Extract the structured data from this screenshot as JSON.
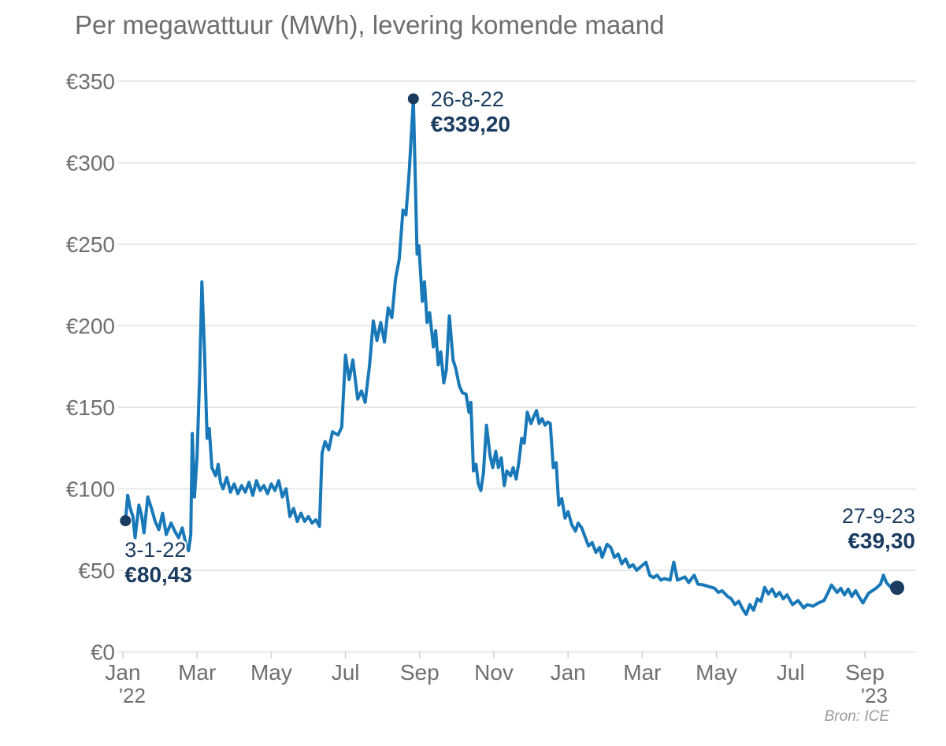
{
  "title": "Per megawattuur (MWh), levering komende maand",
  "source": "Bron: ICE",
  "colors": {
    "line": "#1878b8",
    "marker": "#1b3c60",
    "annotation_text": "#1b3c60",
    "title_text": "#6d6d6d",
    "axis_text": "#6f6f6f",
    "gridline": "#e8e8e8",
    "tick_mark": "#cfcfcf",
    "background": "#ffffff"
  },
  "chart_data": {
    "type": "line",
    "title": "Per megawattuur (MWh), levering komende maand",
    "currency": "EUR",
    "ylim": [
      0,
      350
    ],
    "grid": "horizontal",
    "y_ticks": [
      {
        "v": 0,
        "label": "€0"
      },
      {
        "v": 50,
        "label": "€50"
      },
      {
        "v": 100,
        "label": "€100"
      },
      {
        "v": 150,
        "label": "€150"
      },
      {
        "v": 200,
        "label": "€200"
      },
      {
        "v": 250,
        "label": "€250"
      },
      {
        "v": 300,
        "label": "€300"
      },
      {
        "v": 350,
        "label": "€350"
      }
    ],
    "x_ticks": [
      {
        "t": 0,
        "label": "Jan",
        "year": "'22"
      },
      {
        "t": 2,
        "label": "Mar"
      },
      {
        "t": 4,
        "label": "May"
      },
      {
        "t": 6,
        "label": "Jul"
      },
      {
        "t": 8,
        "label": "Sep"
      },
      {
        "t": 10,
        "label": "Nov"
      },
      {
        "t": 12,
        "label": "Jan"
      },
      {
        "t": 14,
        "label": "Mar"
      },
      {
        "t": 16,
        "label": "May"
      },
      {
        "t": 18,
        "label": "Jul"
      },
      {
        "t": 20,
        "label": "Sep",
        "year": "'23"
      }
    ],
    "annotations": [
      {
        "t": 0.07,
        "value": 80.43,
        "date": "3-1-22",
        "price": "€80,43",
        "dot_r": 7,
        "placement": "below-right"
      },
      {
        "t": 7.83,
        "value": 339.2,
        "date": "26-8-22",
        "price": "€339,20",
        "dot_r": 7,
        "placement": "right-of-peak"
      },
      {
        "t": 20.87,
        "value": 39.3,
        "date": "27-9-23",
        "price": "€39,30",
        "dot_r": 9,
        "placement": "above-right-aligned"
      }
    ],
    "points": [
      [
        0.07,
        80.43
      ],
      [
        0.13,
        96
      ],
      [
        0.2,
        88
      ],
      [
        0.27,
        83
      ],
      [
        0.33,
        70
      ],
      [
        0.43,
        90
      ],
      [
        0.5,
        84
      ],
      [
        0.57,
        73
      ],
      [
        0.67,
        95
      ],
      [
        0.77,
        88
      ],
      [
        0.87,
        80
      ],
      [
        0.97,
        75
      ],
      [
        1.07,
        85
      ],
      [
        1.17,
        72
      ],
      [
        1.3,
        79
      ],
      [
        1.4,
        74
      ],
      [
        1.5,
        70
      ],
      [
        1.6,
        76
      ],
      [
        1.7,
        66
      ],
      [
        1.77,
        62
      ],
      [
        1.83,
        72
      ],
      [
        1.87,
        134
      ],
      [
        1.93,
        95
      ],
      [
        2.0,
        120
      ],
      [
        2.07,
        170
      ],
      [
        2.13,
        227
      ],
      [
        2.2,
        185
      ],
      [
        2.27,
        131
      ],
      [
        2.33,
        137
      ],
      [
        2.4,
        113
      ],
      [
        2.5,
        108
      ],
      [
        2.57,
        115
      ],
      [
        2.63,
        104
      ],
      [
        2.7,
        100
      ],
      [
        2.8,
        107
      ],
      [
        2.9,
        98
      ],
      [
        3.0,
        103
      ],
      [
        3.1,
        97
      ],
      [
        3.2,
        102
      ],
      [
        3.3,
        98
      ],
      [
        3.4,
        104
      ],
      [
        3.5,
        96
      ],
      [
        3.6,
        105
      ],
      [
        3.7,
        99
      ],
      [
        3.8,
        102
      ],
      [
        3.9,
        97
      ],
      [
        4.0,
        103
      ],
      [
        4.1,
        99
      ],
      [
        4.2,
        105
      ],
      [
        4.3,
        95
      ],
      [
        4.4,
        100
      ],
      [
        4.5,
        83
      ],
      [
        4.6,
        88
      ],
      [
        4.7,
        80
      ],
      [
        4.8,
        85
      ],
      [
        4.9,
        80
      ],
      [
        5.0,
        83
      ],
      [
        5.1,
        79
      ],
      [
        5.2,
        81
      ],
      [
        5.3,
        77
      ],
      [
        5.37,
        122
      ],
      [
        5.45,
        129
      ],
      [
        5.55,
        124
      ],
      [
        5.65,
        135
      ],
      [
        5.8,
        133
      ],
      [
        5.9,
        138
      ],
      [
        6.0,
        182
      ],
      [
        6.1,
        167
      ],
      [
        6.2,
        179
      ],
      [
        6.33,
        155
      ],
      [
        6.43,
        160
      ],
      [
        6.53,
        153
      ],
      [
        6.65,
        176
      ],
      [
        6.75,
        203
      ],
      [
        6.85,
        191
      ],
      [
        6.95,
        202
      ],
      [
        7.05,
        190
      ],
      [
        7.15,
        211
      ],
      [
        7.25,
        205
      ],
      [
        7.35,
        229
      ],
      [
        7.45,
        241
      ],
      [
        7.55,
        271
      ],
      [
        7.63,
        268
      ],
      [
        7.72,
        295
      ],
      [
        7.83,
        339.2
      ],
      [
        7.93,
        244
      ],
      [
        7.98,
        249
      ],
      [
        8.07,
        215
      ],
      [
        8.13,
        227
      ],
      [
        8.2,
        202
      ],
      [
        8.27,
        208
      ],
      [
        8.37,
        187
      ],
      [
        8.43,
        197
      ],
      [
        8.5,
        176
      ],
      [
        8.57,
        184
      ],
      [
        8.65,
        165
      ],
      [
        8.72,
        173
      ],
      [
        8.8,
        206
      ],
      [
        8.9,
        179
      ],
      [
        8.97,
        174
      ],
      [
        9.07,
        163
      ],
      [
        9.15,
        159
      ],
      [
        9.25,
        158
      ],
      [
        9.33,
        147
      ],
      [
        9.38,
        153
      ],
      [
        9.45,
        111
      ],
      [
        9.52,
        115
      ],
      [
        9.58,
        103
      ],
      [
        9.65,
        99
      ],
      [
        9.72,
        110
      ],
      [
        9.8,
        139
      ],
      [
        9.9,
        120
      ],
      [
        9.97,
        113
      ],
      [
        10.05,
        123
      ],
      [
        10.12,
        113
      ],
      [
        10.2,
        119
      ],
      [
        10.28,
        102
      ],
      [
        10.35,
        111
      ],
      [
        10.45,
        108
      ],
      [
        10.52,
        113
      ],
      [
        10.6,
        106
      ],
      [
        10.67,
        116
      ],
      [
        10.75,
        131
      ],
      [
        10.82,
        128
      ],
      [
        10.9,
        147
      ],
      [
        11.0,
        140
      ],
      [
        11.07,
        144
      ],
      [
        11.15,
        148
      ],
      [
        11.22,
        140
      ],
      [
        11.3,
        143
      ],
      [
        11.38,
        139
      ],
      [
        11.45,
        141
      ],
      [
        11.52,
        140
      ],
      [
        11.6,
        113
      ],
      [
        11.68,
        116
      ],
      [
        11.75,
        90
      ],
      [
        11.83,
        94
      ],
      [
        11.92,
        82
      ],
      [
        12.0,
        86
      ],
      [
        12.1,
        78
      ],
      [
        12.2,
        74
      ],
      [
        12.27,
        79
      ],
      [
        12.37,
        76
      ],
      [
        12.45,
        71
      ],
      [
        12.55,
        65
      ],
      [
        12.65,
        67
      ],
      [
        12.75,
        61
      ],
      [
        12.85,
        64
      ],
      [
        12.92,
        58
      ],
      [
        13.05,
        66
      ],
      [
        13.15,
        64
      ],
      [
        13.25,
        58
      ],
      [
        13.35,
        60
      ],
      [
        13.45,
        54
      ],
      [
        13.55,
        57
      ],
      [
        13.65,
        52
      ],
      [
        13.75,
        53.5
      ],
      [
        13.85,
        50
      ],
      [
        13.95,
        52
      ],
      [
        14.1,
        55
      ],
      [
        14.2,
        47
      ],
      [
        14.3,
        45.5
      ],
      [
        14.4,
        47
      ],
      [
        14.5,
        44
      ],
      [
        14.6,
        45
      ],
      [
        14.75,
        44
      ],
      [
        14.85,
        55
      ],
      [
        14.95,
        44
      ],
      [
        15.05,
        45
      ],
      [
        15.15,
        46
      ],
      [
        15.25,
        42.5
      ],
      [
        15.4,
        47
      ],
      [
        15.5,
        41.5
      ],
      [
        15.65,
        41
      ],
      [
        15.8,
        40
      ],
      [
        15.95,
        39
      ],
      [
        16.05,
        36.5
      ],
      [
        16.15,
        37.5
      ],
      [
        16.3,
        34
      ],
      [
        16.4,
        32.5
      ],
      [
        16.5,
        29
      ],
      [
        16.6,
        31
      ],
      [
        16.7,
        26.5
      ],
      [
        16.8,
        23
      ],
      [
        16.9,
        29
      ],
      [
        17.0,
        25.5
      ],
      [
        17.1,
        32.5
      ],
      [
        17.2,
        31
      ],
      [
        17.3,
        39.5
      ],
      [
        17.4,
        35.5
      ],
      [
        17.5,
        38.5
      ],
      [
        17.6,
        34
      ],
      [
        17.7,
        36.5
      ],
      [
        17.8,
        32.5
      ],
      [
        17.9,
        35
      ],
      [
        18.05,
        29
      ],
      [
        18.2,
        31.5
      ],
      [
        18.35,
        27
      ],
      [
        18.45,
        29
      ],
      [
        18.6,
        28
      ],
      [
        18.75,
        30
      ],
      [
        18.9,
        31.5
      ],
      [
        19.0,
        36
      ],
      [
        19.1,
        41
      ],
      [
        19.25,
        36.5
      ],
      [
        19.35,
        39
      ],
      [
        19.45,
        35
      ],
      [
        19.55,
        38.5
      ],
      [
        19.65,
        34
      ],
      [
        19.75,
        37.5
      ],
      [
        19.85,
        33.5
      ],
      [
        19.95,
        30
      ],
      [
        20.1,
        36
      ],
      [
        20.2,
        37.5
      ],
      [
        20.3,
        39
      ],
      [
        20.42,
        41.5
      ],
      [
        20.5,
        47
      ],
      [
        20.58,
        42.5
      ],
      [
        20.68,
        40
      ],
      [
        20.78,
        42
      ],
      [
        20.87,
        39.3
      ]
    ]
  }
}
